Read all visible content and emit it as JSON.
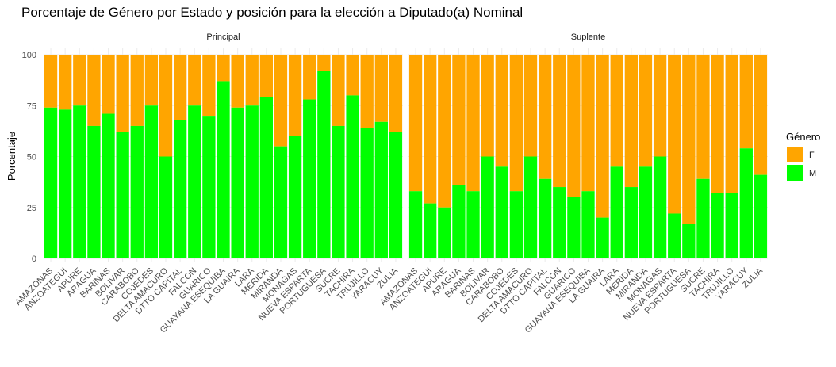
{
  "chart_data": {
    "type": "bar",
    "stacked": true,
    "title": "Porcentaje de Género por Estado y posición para la elección a Diputado(a) Nominal",
    "xlabel": "",
    "ylabel": "Porcentaje",
    "ylim": [
      0,
      100
    ],
    "yticks": [
      "0",
      "25",
      "50",
      "75",
      "100"
    ],
    "grid": true,
    "legend": {
      "title": "Género",
      "placement": "right",
      "items": [
        {
          "label": "F",
          "color": "#FFA500"
        },
        {
          "label": "M",
          "color": "#00FF00"
        }
      ]
    },
    "categories": [
      "AMAZONAS",
      "ANZOATEGUI",
      "APURE",
      "ARAGUA",
      "BARINAS",
      "BOLIVAR",
      "CARABOBO",
      "COJEDES",
      "DELTA AMACURO",
      "DTTO CAPITAL",
      "FALCON",
      "GUARICO",
      "GUAYANA ESEQUIBA",
      "LA GUAIRA",
      "LARA",
      "MERIDA",
      "MIRANDA",
      "MONAGAS",
      "NUEVA ESPARTA",
      "PORTUGUESA",
      "SUCRE",
      "TACHIRA",
      "TRUJILLO",
      "YARACUY",
      "ZULIA"
    ],
    "panels": [
      {
        "name": "Principal",
        "M": [
          74,
          73,
          75,
          65,
          71,
          62,
          65,
          75,
          50,
          68,
          75,
          70,
          87,
          74,
          75,
          79,
          55,
          60,
          78,
          92,
          65,
          80,
          64,
          67,
          62
        ]
      },
      {
        "name": "Suplente",
        "M": [
          33,
          27,
          25,
          36,
          33,
          50,
          45,
          33,
          50,
          39,
          35,
          30,
          33,
          20,
          45,
          35,
          45,
          50,
          22,
          17,
          39,
          32,
          32,
          54,
          41
        ]
      }
    ]
  }
}
